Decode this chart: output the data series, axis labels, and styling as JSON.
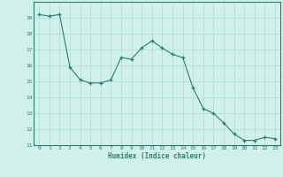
{
  "x": [
    0,
    1,
    2,
    3,
    4,
    5,
    6,
    7,
    8,
    9,
    10,
    11,
    12,
    13,
    14,
    15,
    16,
    17,
    18,
    19,
    20,
    21,
    22,
    23
  ],
  "y": [
    19.2,
    19.1,
    19.2,
    15.9,
    15.1,
    14.9,
    14.9,
    15.1,
    16.5,
    16.4,
    17.1,
    17.55,
    17.1,
    16.7,
    16.5,
    14.6,
    13.3,
    13.0,
    12.4,
    11.7,
    11.3,
    11.3,
    11.5,
    11.4
  ],
  "line_color": "#2d7d6e",
  "marker": "+",
  "background_color": "#cff0eb",
  "grid_color": "#b8ddd8",
  "axis_color": "#2d7d6e",
  "tick_color": "#2d7d6e",
  "xlabel": "Humidex (Indice chaleur)",
  "ylim": [
    11,
    20
  ],
  "xlim": [
    -0.5,
    23.5
  ],
  "yticks": [
    11,
    12,
    13,
    14,
    15,
    16,
    17,
    18,
    19
  ],
  "xticks": [
    0,
    1,
    2,
    3,
    4,
    5,
    6,
    7,
    8,
    9,
    10,
    11,
    12,
    13,
    14,
    15,
    16,
    17,
    18,
    19,
    20,
    21,
    22,
    23
  ],
  "xtick_labels": [
    "0",
    "1",
    "2",
    "3",
    "4",
    "5",
    "6",
    "7",
    "8",
    "9",
    "10",
    "11",
    "12",
    "13",
    "14",
    "15",
    "16",
    "17",
    "18",
    "19",
    "20",
    "21",
    "22",
    "23"
  ],
  "figsize": [
    3.2,
    2.0
  ],
  "dpi": 100
}
